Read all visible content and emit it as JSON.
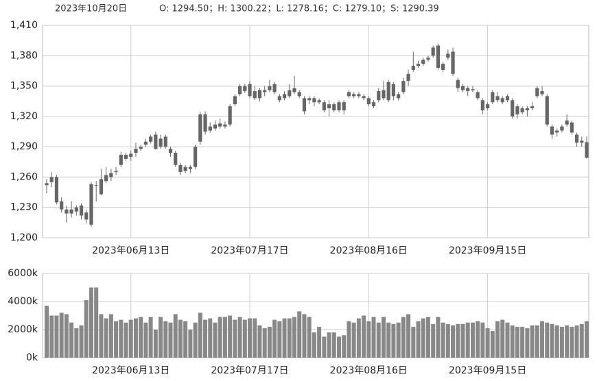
{
  "header": {
    "date": "2023年10月20日",
    "stats": "O: 1294.50；H: 1300.22；L: 1278.16；C: 1279.10；S: 1290.39"
  },
  "chart_data": [
    {
      "type": "candlestick",
      "categories": [
        null,
        null,
        null,
        null,
        null,
        null,
        null,
        null,
        null,
        null,
        null,
        null,
        null,
        null,
        null,
        null,
        null,
        "2023年06月13日",
        null,
        null,
        null,
        null,
        null,
        null,
        null,
        null,
        null,
        null,
        null,
        null,
        null,
        null,
        null,
        null,
        null,
        null,
        null,
        null,
        null,
        null,
        null,
        "2023年07月17日",
        null,
        null,
        null,
        null,
        null,
        null,
        null,
        null,
        null,
        null,
        null,
        null,
        null,
        null,
        null,
        null,
        null,
        null,
        null,
        null,
        null,
        null,
        null,
        "2023年08月16日",
        null,
        null,
        null,
        null,
        null,
        null,
        null,
        null,
        null,
        null,
        null,
        null,
        null,
        null,
        null,
        null,
        null,
        null,
        null,
        null,
        null,
        null,
        null,
        "2023年09月15日",
        null,
        null,
        null,
        null,
        null,
        null,
        null,
        null,
        null,
        null,
        null,
        null,
        null,
        null,
        null,
        null,
        null,
        null,
        null,
        null
      ],
      "open": [
        1252,
        1255,
        1260,
        1236,
        1224,
        1228,
        1226,
        1232,
        1225,
        1213,
        1252,
        1243,
        1256,
        1260,
        1265,
        1272,
        1282,
        1280,
        1284,
        1288,
        1292,
        1295,
        1302,
        1298,
        1290,
        1284,
        1284,
        1272,
        1266,
        1270,
        1270,
        1295,
        1322,
        1306,
        1308,
        1310,
        1312,
        1312,
        1332,
        1342,
        1350,
        1352,
        1345,
        1338,
        1344,
        1346,
        1352,
        1340,
        1338,
        1340,
        1348,
        1344,
        1338,
        1336,
        1338,
        1334,
        1334,
        1328,
        1332,
        1326,
        1334,
        1340,
        1342,
        1340,
        1340,
        1338,
        1330,
        1336,
        1346,
        1336,
        1352,
        1338,
        1344,
        1355,
        1366,
        1370,
        1372,
        1378,
        1380,
        1390,
        1366,
        1378,
        1384,
        1356,
        1350,
        1348,
        1346,
        1344,
        1336,
        1328,
        1344,
        1340,
        1338,
        1340,
        1336,
        1322,
        1328,
        1326,
        1328,
        1348,
        1345,
        1340,
        1310,
        1304,
        1306,
        1312,
        1314,
        1302,
        1296,
        1294.5
      ],
      "high": [
        1258,
        1265,
        1262,
        1240,
        1232,
        1236,
        1232,
        1234,
        1228,
        1255,
        1256,
        1268,
        1270,
        1268,
        1270,
        1285,
        1284,
        1286,
        1294,
        1292,
        1298,
        1302,
        1305,
        1302,
        1302,
        1290,
        1286,
        1274,
        1272,
        1272,
        1292,
        1324,
        1325,
        1314,
        1316,
        1318,
        1315,
        1332,
        1342,
        1352,
        1352,
        1355,
        1350,
        1348,
        1350,
        1356,
        1354,
        1342,
        1345,
        1352,
        1360,
        1346,
        1340,
        1340,
        1340,
        1338,
        1336,
        1336,
        1334,
        1336,
        1336,
        1346,
        1344,
        1344,
        1342,
        1340,
        1336,
        1348,
        1355,
        1356,
        1354,
        1344,
        1358,
        1366,
        1384,
        1375,
        1378,
        1380,
        1390,
        1392,
        1374,
        1386,
        1388,
        1358,
        1352,
        1350,
        1350,
        1346,
        1338,
        1334,
        1346,
        1344,
        1340,
        1342,
        1338,
        1332,
        1330,
        1330,
        1334,
        1350,
        1350,
        1342,
        1312,
        1308,
        1312,
        1322,
        1316,
        1304,
        1300,
        1300.22
      ],
      "low": [
        1244,
        1250,
        1233,
        1225,
        1215,
        1220,
        1222,
        1218,
        1214,
        1211,
        1236,
        1242,
        1254,
        1256,
        1262,
        1270,
        1276,
        1276,
        1280,
        1286,
        1290,
        1293,
        1287,
        1288,
        1288,
        1280,
        1270,
        1262,
        1264,
        1264,
        1268,
        1292,
        1302,
        1304,
        1306,
        1308,
        1308,
        1310,
        1330,
        1340,
        1343,
        1338,
        1336,
        1335,
        1340,
        1344,
        1342,
        1334,
        1336,
        1338,
        1342,
        1338,
        1322,
        1332,
        1330,
        1332,
        1324,
        1320,
        1324,
        1324,
        1322,
        1338,
        1338,
        1338,
        1336,
        1330,
        1328,
        1334,
        1336,
        1334,
        1336,
        1336,
        1342,
        1350,
        1364,
        1368,
        1370,
        1374,
        1378,
        1366,
        1364,
        1376,
        1360,
        1344,
        1344,
        1340,
        1344,
        1336,
        1322,
        1326,
        1332,
        1334,
        1332,
        1334,
        1318,
        1318,
        1322,
        1320,
        1326,
        1338,
        1340,
        1310,
        1298,
        1300,
        1304,
        1310,
        1302,
        1290,
        1290,
        1278.16
      ],
      "close": [
        1254,
        1260,
        1235,
        1228,
        1228,
        1224,
        1230,
        1222,
        1218,
        1253,
        1252,
        1258,
        1262,
        1264,
        1266,
        1282,
        1278,
        1283,
        1288,
        1290,
        1295,
        1300,
        1288,
        1290,
        1300,
        1288,
        1272,
        1265,
        1270,
        1268,
        1290,
        1322,
        1305,
        1310,
        1312,
        1313,
        1310,
        1330,
        1340,
        1350,
        1345,
        1340,
        1338,
        1346,
        1346,
        1350,
        1344,
        1336,
        1342,
        1346,
        1344,
        1340,
        1325,
        1338,
        1334,
        1336,
        1326,
        1332,
        1326,
        1334,
        1326,
        1344,
        1340,
        1342,
        1338,
        1332,
        1334,
        1345,
        1338,
        1354,
        1340,
        1342,
        1355,
        1362,
        1370,
        1372,
        1376,
        1376,
        1388,
        1368,
        1372,
        1382,
        1362,
        1348,
        1346,
        1345,
        1347,
        1338,
        1326,
        1332,
        1334,
        1336,
        1334,
        1336,
        1320,
        1330,
        1324,
        1328,
        1330,
        1340,
        1342,
        1312,
        1302,
        1306,
        1310,
        1316,
        1304,
        1294,
        1294,
        1279.1
      ],
      "color": "#666666",
      "ylim": [
        1200,
        1410
      ],
      "yticks": [
        {
          "value": 1200,
          "label": "1,200"
        },
        {
          "value": 1230,
          "label": "1,230"
        },
        {
          "value": 1260,
          "label": "1,260"
        },
        {
          "value": 1290,
          "label": "1,290"
        },
        {
          "value": 1320,
          "label": "1,320"
        },
        {
          "value": 1350,
          "label": "1,350"
        },
        {
          "value": 1380,
          "label": "1,380"
        },
        {
          "value": 1410,
          "label": "1,410"
        }
      ],
      "grid": true
    },
    {
      "type": "bar",
      "categories": [
        null,
        null,
        null,
        null,
        null,
        null,
        null,
        null,
        null,
        null,
        null,
        null,
        null,
        null,
        null,
        null,
        null,
        "2023年06月13日",
        null,
        null,
        null,
        null,
        null,
        null,
        null,
        null,
        null,
        null,
        null,
        null,
        null,
        null,
        null,
        null,
        null,
        null,
        null,
        null,
        null,
        null,
        null,
        "2023年07月17日",
        null,
        null,
        null,
        null,
        null,
        null,
        null,
        null,
        null,
        null,
        null,
        null,
        null,
        null,
        null,
        null,
        null,
        null,
        null,
        null,
        null,
        null,
        null,
        "2023年08月16日",
        null,
        null,
        null,
        null,
        null,
        null,
        null,
        null,
        null,
        null,
        null,
        null,
        null,
        null,
        null,
        null,
        null,
        null,
        null,
        null,
        null,
        null,
        null,
        "2023年09月15日",
        null,
        null,
        null,
        null,
        null,
        null,
        null,
        null,
        null,
        null,
        null,
        null,
        null,
        null,
        null,
        null,
        null,
        null,
        null,
        null
      ],
      "values": [
        3700000,
        3000000,
        3000000,
        3200000,
        3100000,
        2500000,
        2100000,
        2300000,
        4100000,
        5000000,
        5000000,
        3100000,
        2800000,
        3100000,
        2600000,
        2700000,
        2500000,
        2700000,
        2800000,
        2900000,
        2500000,
        2900000,
        2000000,
        2900000,
        2600000,
        2500000,
        3100000,
        2700000,
        2600000,
        2000000,
        2500000,
        3200000,
        2700000,
        2800000,
        2500000,
        2900000,
        2900000,
        3000000,
        2700000,
        2900000,
        2700000,
        2800000,
        2800000,
        2300000,
        2100000,
        2200000,
        2700000,
        2600000,
        2800000,
        2800000,
        2900000,
        3300000,
        3100000,
        2900000,
        1800000,
        2200000,
        1500000,
        1800000,
        1800000,
        1500000,
        1600000,
        2600000,
        2500000,
        2800000,
        3000000,
        2600000,
        2900000,
        2500000,
        2900000,
        2500000,
        2400000,
        2500000,
        2900000,
        3100000,
        2200000,
        2600000,
        2800000,
        2900000,
        2400000,
        2900000,
        2500000,
        2400000,
        2300000,
        2400000,
        2400000,
        2500000,
        2500000,
        2600000,
        2500000,
        2100000,
        1900000,
        2600000,
        2700000,
        2500000,
        2300000,
        2200000,
        2200000,
        2100000,
        2300000,
        2300000,
        2600000,
        2500000,
        2400000,
        2300000,
        2200000,
        2300000,
        2200000,
        2300000,
        2400000,
        2600000
      ],
      "color": "#888888",
      "ylim": [
        0,
        6000000
      ],
      "yticks": [
        {
          "value": 0,
          "label": "0k"
        },
        {
          "value": 2000000,
          "label": "2000k"
        },
        {
          "value": 4000000,
          "label": "4000k"
        },
        {
          "value": 6000000,
          "label": "6000k"
        }
      ],
      "grid": true
    }
  ]
}
